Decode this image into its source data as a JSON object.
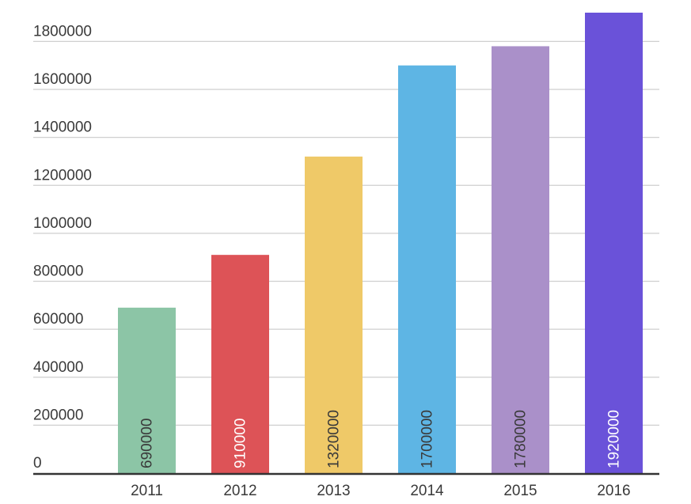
{
  "chart_data": {
    "type": "bar",
    "categories": [
      "2011",
      "2012",
      "2013",
      "2014",
      "2015",
      "2016"
    ],
    "values": [
      690000,
      910000,
      1320000,
      1700000,
      1780000,
      1920000
    ],
    "data_labels": [
      "690000",
      "910000",
      "1320000",
      "1700000",
      "1780000",
      "1920000"
    ],
    "colors": [
      "#8cc5a6",
      "#dd5357",
      "#efc968",
      "#5eb5e4",
      "#aa90c9",
      "#6a52d9"
    ],
    "data_label_colors": [
      "#3a3a3a",
      "#ffffff",
      "#3a3a3a",
      "#3a3a3a",
      "#3a3a3a",
      "#ffffff"
    ],
    "yticks": [
      0,
      200000,
      400000,
      600000,
      800000,
      1000000,
      1200000,
      1400000,
      1600000,
      1800000
    ],
    "ytick_labels": [
      "0",
      "200000",
      "400000",
      "600000",
      "800000",
      "1000000",
      "1200000",
      "1400000",
      "1600000",
      "1800000"
    ],
    "ylim": [
      0,
      1920000
    ],
    "grid": true,
    "legend": "none",
    "title": "",
    "xlabel": "",
    "ylabel": ""
  }
}
